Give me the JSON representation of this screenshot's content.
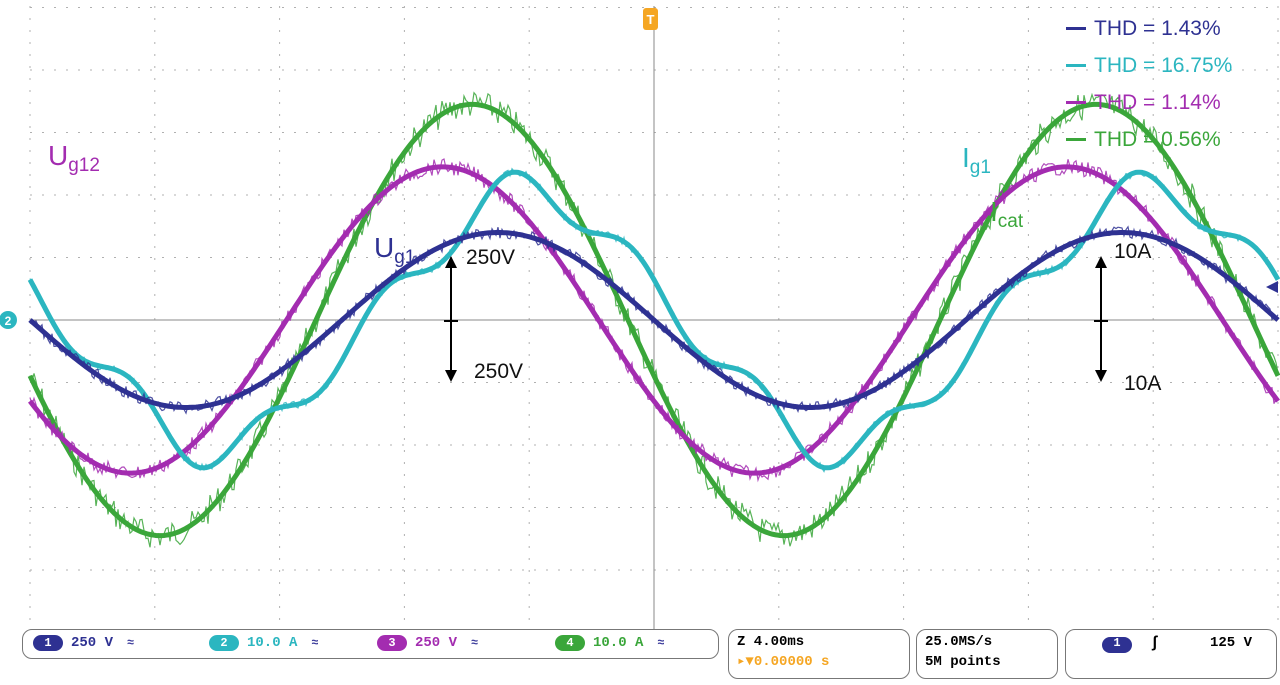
{
  "colors": {
    "ch1": "#2e3192",
    "ch2": "#2bb6c0",
    "ch3": "#a32cb0",
    "ch4": "#3aa63a",
    "trigger": "#f5a623"
  },
  "chart_data": {
    "type": "line",
    "title": "",
    "xlabel": "",
    "ylabel": "",
    "x_unit": "ms",
    "grid": true,
    "xlim": [
      -20,
      20
    ],
    "divisions": {
      "x": 10,
      "y": 8
    },
    "series": [
      {
        "name": "U_g1",
        "channel": 1,
        "scale": "250 V/div",
        "peak_div": 1.4,
        "phase_deg": 0,
        "thd": "THD = 1.43%"
      },
      {
        "name": "I_g1",
        "channel": 2,
        "scale": "10.0 A/div",
        "peak_div": 2.0,
        "phase_deg": 17,
        "thd": "THD = 16.75%"
      },
      {
        "name": "U_g12",
        "channel": 3,
        "scale": "250 V/div",
        "peak_div": 2.45,
        "phase_deg": -32,
        "thd": "THD = 1.14%"
      },
      {
        "name": "I_cat",
        "channel": 4,
        "scale": "10.0 A/div",
        "peak_div": 3.45,
        "phase_deg": -15,
        "thd": "THD = 0.56%"
      }
    ]
  },
  "legend": [
    {
      "text": "THD = 1.43%",
      "color": "#2e3192"
    },
    {
      "text": "THD = 16.75%",
      "color": "#2bb6c0"
    },
    {
      "text": "THD = 1.14%",
      "color": "#a32cb0"
    },
    {
      "text": "THD = 0.56%",
      "color": "#3aa63a"
    }
  ],
  "labels": {
    "ug12": {
      "main": "U",
      "sub": "g12"
    },
    "ug1": {
      "main": "U",
      "sub": "g1"
    },
    "ig1": {
      "main": "I",
      "sub": "g1"
    },
    "icat": {
      "main": "I",
      "sub": "cat"
    },
    "v_up": "250V",
    "v_down": "250V",
    "a_up": "10A",
    "a_down": "10A"
  },
  "scope": {
    "trigger_marker": "T",
    "ch2_marker": "2",
    "ch1": {
      "num": "1",
      "scale": "250 V"
    },
    "ch2": {
      "num": "2",
      "scale": "10.0 A"
    },
    "ch3": {
      "num": "3",
      "scale": "250 V"
    },
    "ch4": {
      "num": "4",
      "scale": "10.0 A"
    },
    "timebase": "Z 4.00ms",
    "delay": "0.00000 s",
    "sample_rate": "25.0MS/s",
    "record": "5M points",
    "trig_ch": "1",
    "trig_slope": "ʃ",
    "trig_level": "125 V"
  }
}
